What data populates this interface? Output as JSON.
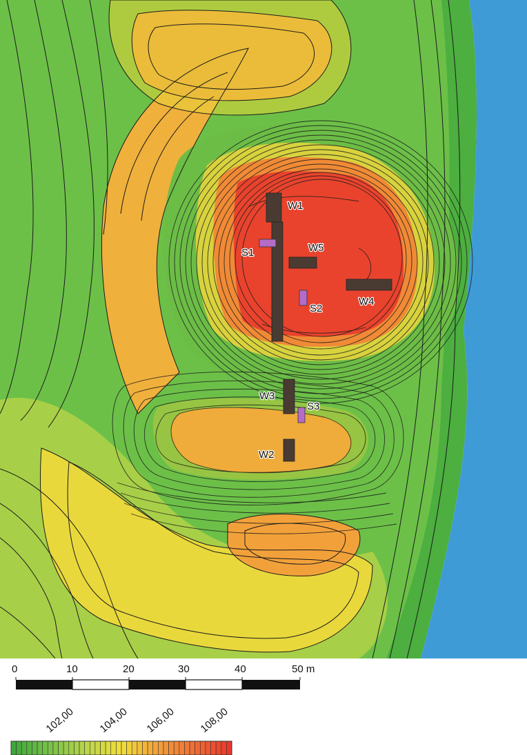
{
  "map": {
    "colors": {
      "water": "#3e9bd6",
      "low_green": "#3fa83c",
      "green": "#6cc048",
      "yellow_green": "#b9d54a",
      "yellow": "#f1df3a",
      "orange": "#f2a13a",
      "orange_red": "#ef6f35",
      "red": "#e9382c",
      "contour": "#1a1a1a",
      "trench": "#4a3b32",
      "sondage": "#b46cc7"
    },
    "trenches": [
      {
        "label": "W1"
      },
      {
        "label": "W5"
      },
      {
        "label": "W4"
      },
      {
        "label": "W3"
      },
      {
        "label": "W2"
      }
    ],
    "sondages": [
      {
        "label": "S1"
      },
      {
        "label": "S2"
      },
      {
        "label": "S3"
      }
    ]
  },
  "scale_bar": {
    "ticks": [
      "0",
      "10",
      "20",
      "30",
      "40",
      "50 m"
    ]
  },
  "legend": {
    "ticks": [
      "102,00",
      "104,00",
      "106,00",
      "108,00"
    ]
  }
}
